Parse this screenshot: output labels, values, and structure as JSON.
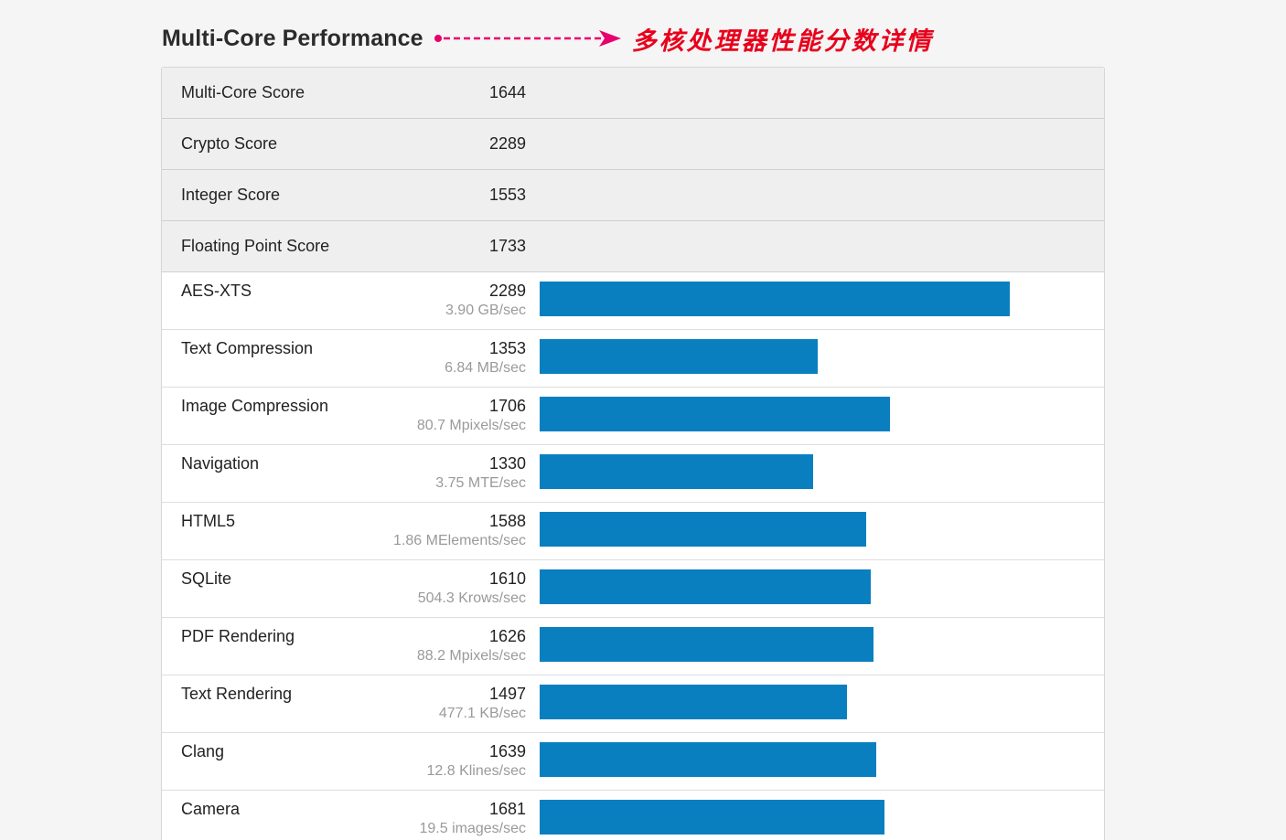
{
  "header": {
    "title": "Multi-Core Performance",
    "annotation": "多核处理器性能分数详情"
  },
  "colors": {
    "bar": "#0a7fbf",
    "annotation": "#e8001c",
    "arrow": "#e8006c"
  },
  "summary": [
    {
      "label": "Multi-Core Score",
      "score": "1644"
    },
    {
      "label": "Crypto Score",
      "score": "2289"
    },
    {
      "label": "Integer Score",
      "score": "1553"
    },
    {
      "label": "Floating Point Score",
      "score": "1733"
    }
  ],
  "benchmarks": [
    {
      "label": "AES-XTS",
      "score": "2289",
      "rate": "3.90 GB/sec"
    },
    {
      "label": "Text Compression",
      "score": "1353",
      "rate": "6.84 MB/sec"
    },
    {
      "label": "Image Compression",
      "score": "1706",
      "rate": "80.7 Mpixels/sec"
    },
    {
      "label": "Navigation",
      "score": "1330",
      "rate": "3.75 MTE/sec"
    },
    {
      "label": "HTML5",
      "score": "1588",
      "rate": "1.86 MElements/sec"
    },
    {
      "label": "SQLite",
      "score": "1610",
      "rate": "504.3 Krows/sec"
    },
    {
      "label": "PDF Rendering",
      "score": "1626",
      "rate": "88.2 Mpixels/sec"
    },
    {
      "label": "Text Rendering",
      "score": "1497",
      "rate": "477.1 KB/sec"
    },
    {
      "label": "Clang",
      "score": "1639",
      "rate": "12.8 Klines/sec"
    },
    {
      "label": "Camera",
      "score": "1681",
      "rate": "19.5 images/sec"
    }
  ]
}
